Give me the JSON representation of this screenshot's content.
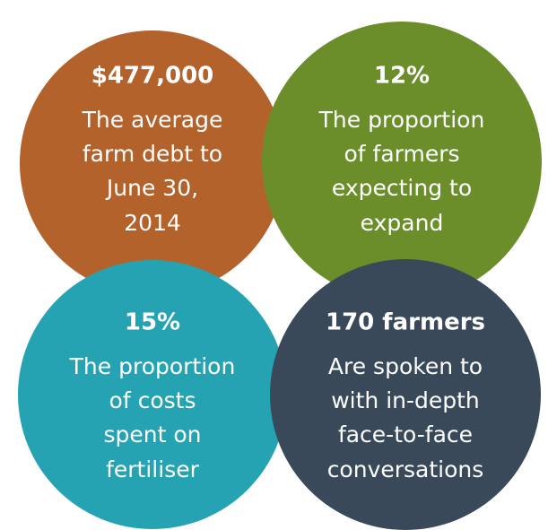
{
  "stats": [
    {
      "headline": "$477,000",
      "lines": [
        "The average",
        "farm debt to",
        "June 30,",
        "2014"
      ],
      "color": "#b4622b"
    },
    {
      "headline": "12%",
      "lines": [
        "The proportion",
        "of farmers",
        "expecting to",
        "expand"
      ],
      "color": "#6b8e2b"
    },
    {
      "headline": "15%",
      "lines": [
        "The proportion",
        "of costs",
        "spent on",
        "fertiliser"
      ],
      "color": "#26a3b2"
    },
    {
      "headline": "170 farmers",
      "lines": [
        "Are spoken to",
        "with in-depth",
        "face-to-face",
        "conversations"
      ],
      "color": "#394959"
    }
  ]
}
